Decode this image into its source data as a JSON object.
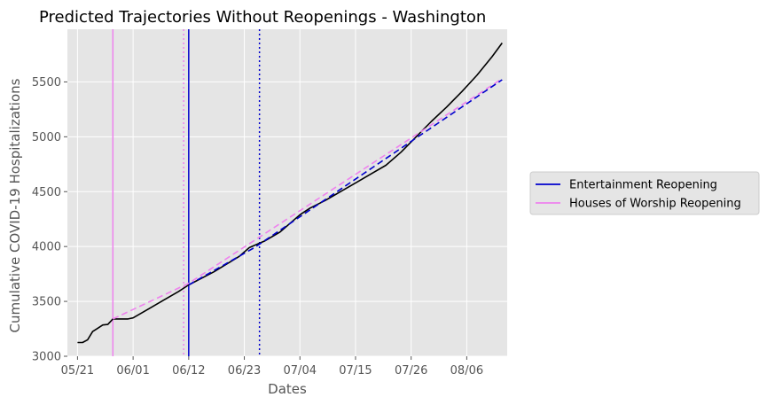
{
  "chart_data": {
    "type": "line",
    "title": "Predicted Trajectories Without Reopenings - Washington",
    "xlabel": "Dates",
    "ylabel": "Cumulative COVID-19 Hospitalizations",
    "x_range": [
      "2020-05-19",
      "2020-08-14"
    ],
    "ylim": [
      3000,
      5980
    ],
    "x_ticks": [
      {
        "date": "2020-05-21",
        "label": "05/21"
      },
      {
        "date": "2020-06-01",
        "label": "06/01"
      },
      {
        "date": "2020-06-12",
        "label": "06/12"
      },
      {
        "date": "2020-06-23",
        "label": "06/23"
      },
      {
        "date": "2020-07-04",
        "label": "07/04"
      },
      {
        "date": "2020-07-15",
        "label": "07/15"
      },
      {
        "date": "2020-07-26",
        "label": "07/26"
      },
      {
        "date": "2020-08-06",
        "label": "08/06"
      }
    ],
    "y_ticks": [
      3000,
      3500,
      4000,
      4500,
      5000,
      5500
    ],
    "grid": true,
    "background": "#e5e5e5",
    "legend_position": "right",
    "legend": [
      {
        "label": "Entertainment Reopening",
        "color": "#0000cc"
      },
      {
        "label": "Houses of Worship Reopening",
        "color": "#ee82ee"
      }
    ],
    "series": [
      {
        "role": "observed",
        "color": "#000000",
        "style": "solid",
        "points": [
          [
            "2020-05-21",
            3125
          ],
          [
            "2020-05-22",
            3125
          ],
          [
            "2020-05-23",
            3150
          ],
          [
            "2020-05-24",
            3225
          ],
          [
            "2020-05-25",
            3255
          ],
          [
            "2020-05-26",
            3285
          ],
          [
            "2020-05-27",
            3290
          ],
          [
            "2020-05-28",
            3340
          ],
          [
            "2020-05-29",
            3340
          ],
          [
            "2020-05-30",
            3340
          ],
          [
            "2020-05-31",
            3340
          ],
          [
            "2020-06-01",
            3350
          ],
          [
            "2020-06-04",
            3430
          ],
          [
            "2020-06-07",
            3510
          ],
          [
            "2020-06-10",
            3590
          ],
          [
            "2020-06-12",
            3650
          ],
          [
            "2020-06-17",
            3770
          ],
          [
            "2020-06-22",
            3910
          ],
          [
            "2020-06-24",
            3990
          ],
          [
            "2020-06-27",
            4050
          ],
          [
            "2020-06-30",
            4130
          ],
          [
            "2020-07-02",
            4210
          ],
          [
            "2020-07-04",
            4290
          ],
          [
            "2020-07-06",
            4350
          ],
          [
            "2020-07-09",
            4420
          ],
          [
            "2020-07-12",
            4500
          ],
          [
            "2020-07-15",
            4580
          ],
          [
            "2020-07-18",
            4660
          ],
          [
            "2020-07-21",
            4740
          ],
          [
            "2020-07-24",
            4860
          ],
          [
            "2020-07-27",
            5000
          ],
          [
            "2020-07-30",
            5140
          ],
          [
            "2020-08-02",
            5270
          ],
          [
            "2020-08-05",
            5410
          ],
          [
            "2020-08-08",
            5560
          ],
          [
            "2020-08-11",
            5730
          ],
          [
            "2020-08-13",
            5855
          ]
        ]
      },
      {
        "role": "predicted-worship",
        "color": "#ee82ee",
        "style": "dashed",
        "points": [
          [
            "2020-05-28",
            3340
          ],
          [
            "2020-06-12",
            3665
          ],
          [
            "2020-08-13",
            5530
          ]
        ]
      },
      {
        "role": "predicted-entertainment",
        "color": "#0000cc",
        "style": "dashed",
        "points": [
          [
            "2020-06-12",
            3650
          ],
          [
            "2020-06-25",
            3990
          ],
          [
            "2020-08-13",
            5520
          ]
        ]
      }
    ],
    "vertical_lines": [
      {
        "date": "2020-05-28",
        "color": "#ee82ee",
        "style": "solid"
      },
      {
        "date": "2020-06-11",
        "color": "#ee82ee",
        "style": "dotted"
      },
      {
        "date": "2020-06-12",
        "color": "#0000cc",
        "style": "solid"
      },
      {
        "date": "2020-06-26",
        "color": "#0000cc",
        "style": "dotted"
      }
    ]
  }
}
